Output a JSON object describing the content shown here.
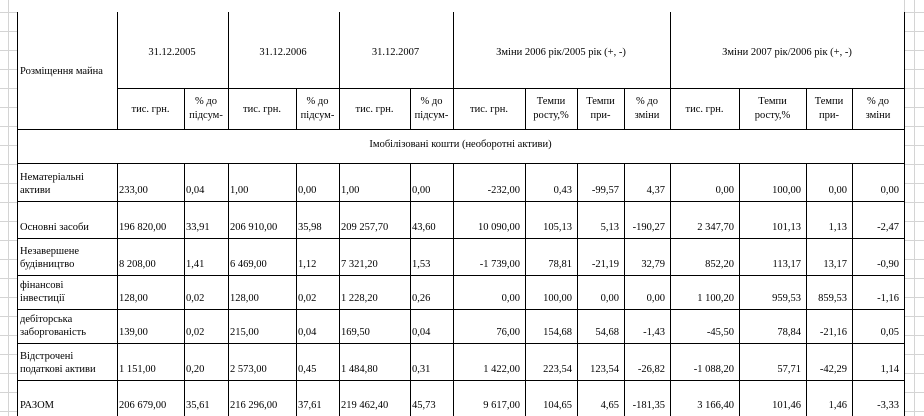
{
  "header": {
    "placement": "Розміщення майна",
    "dates": [
      "31.12.2005",
      "31.12.2006",
      "31.12.2007"
    ],
    "change1": "Зміни 2006 рік/2005 рік (+, -)",
    "change2": "Зміни 2007 рік/2006 рік (+, -)",
    "sub": {
      "thous": "тис. грн.",
      "pct_total": [
        "% до",
        "підсум-"
      ],
      "growth": [
        "Темпи",
        "росту,%"
      ],
      "gain": [
        "Темпи",
        "при-"
      ],
      "pct_change": [
        "% до",
        "зміни"
      ]
    }
  },
  "section_title": "Імобілізовані кошти (необоротні активи)",
  "rows": [
    {
      "label": [
        "Нематеріальні",
        "активи"
      ],
      "values": [
        "233,00",
        "0,04",
        "1,00",
        "0,00",
        "1,00",
        "0,00",
        "-232,00",
        "0,43",
        "-99,57",
        "4,37",
        "0,00",
        "100,00",
        "0,00",
        "0,00"
      ]
    },
    {
      "label": [
        "",
        "Основні засоби"
      ],
      "values": [
        "196 820,00",
        "33,91",
        "206 910,00",
        "35,98",
        "209 257,70",
        "43,60",
        "10 090,00",
        "105,13",
        "5,13",
        "-190,27",
        "2 347,70",
        "101,13",
        "1,13",
        "-2,47"
      ]
    },
    {
      "label": [
        "Незавершене",
        "будівництво"
      ],
      "values": [
        "8 208,00",
        "1,41",
        "6 469,00",
        "1,12",
        "7 321,20",
        "1,53",
        "-1 739,00",
        "78,81",
        "-21,19",
        "32,79",
        "852,20",
        "113,17",
        "13,17",
        "-0,90"
      ]
    },
    {
      "label": [
        "фінансові",
        "інвестиції"
      ],
      "values": [
        "128,00",
        "0,02",
        "128,00",
        "0,02",
        "1 228,20",
        "0,26",
        "0,00",
        "100,00",
        "0,00",
        "0,00",
        "1 100,20",
        "959,53",
        "859,53",
        "-1,16"
      ]
    },
    {
      "label": [
        "дебіторська",
        "заборгованість"
      ],
      "values": [
        "139,00",
        "0,02",
        "215,00",
        "0,04",
        "169,50",
        "0,04",
        "76,00",
        "154,68",
        "54,68",
        "-1,43",
        "-45,50",
        "78,84",
        "-21,16",
        "0,05"
      ]
    },
    {
      "label": [
        "Відстрочені",
        "податкові активи"
      ],
      "values": [
        "1 151,00",
        "0,20",
        "2 573,00",
        "0,45",
        "1 484,80",
        "0,31",
        "1 422,00",
        "223,54",
        "123,54",
        "-26,82",
        "-1 088,20",
        "57,71",
        "-42,29",
        "1,14"
      ]
    },
    {
      "label": [
        "",
        "РАЗОМ"
      ],
      "values": [
        "206 679,00",
        "35,61",
        "216 296,00",
        "37,61",
        "219 462,40",
        "45,73",
        "9 617,00",
        "104,65",
        "4,65",
        "-181,35",
        "3 166,40",
        "101,46",
        "1,46",
        "-3,33"
      ]
    }
  ]
}
